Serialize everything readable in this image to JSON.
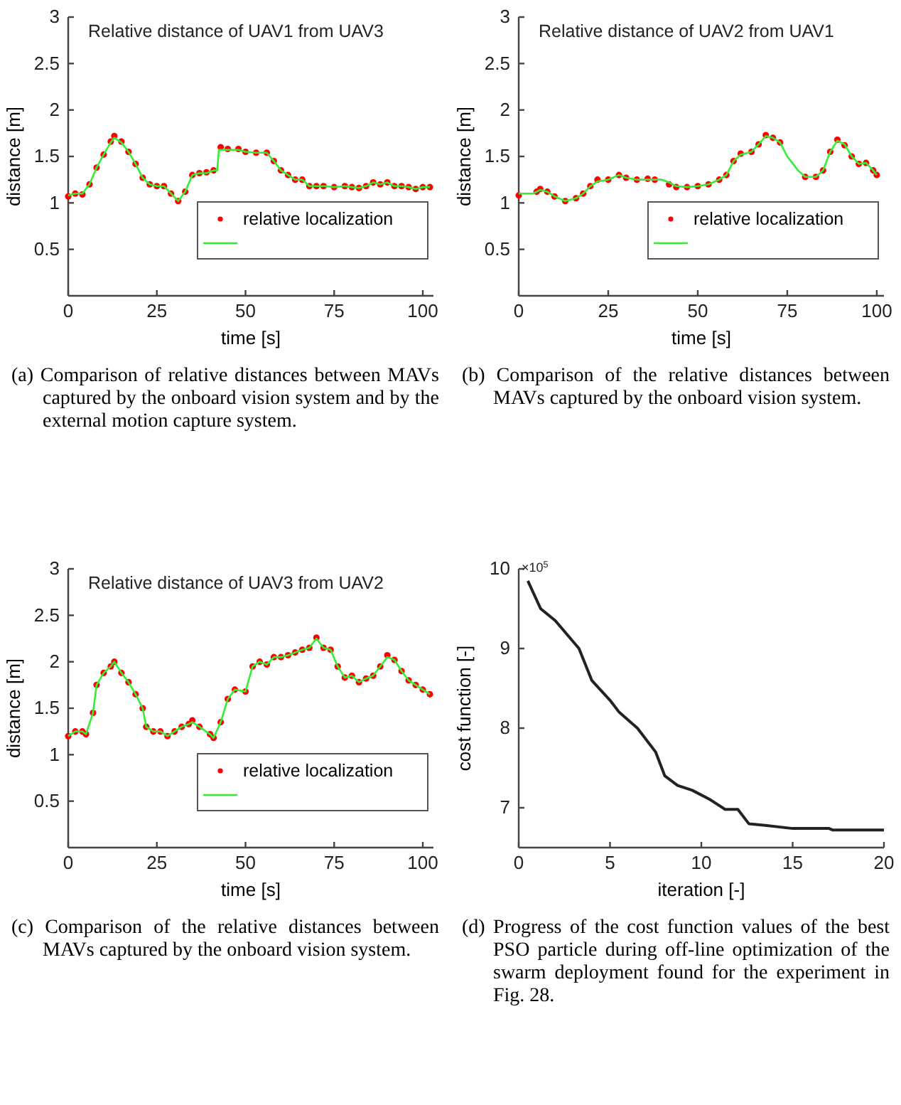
{
  "chart_data": [
    {
      "type": "scatter",
      "title": "Relative distance of UAV1 from UAV3",
      "xlabel": "time [s]",
      "ylabel": "distance [m]",
      "xlim": [
        0,
        103
      ],
      "ylim": [
        0,
        3
      ],
      "xticks": [
        0,
        25,
        50,
        75,
        100
      ],
      "yticks": [
        0.5,
        1,
        1.5,
        2,
        2.5,
        3
      ],
      "legend": "bottom right",
      "grid": false,
      "annotations": [
        "(a) Comparison of relative distances between MAVs captured by the onboard vision system and by the external motion capture system."
      ],
      "series": [
        {
          "name": "relative localization",
          "type": "scatter",
          "marker": "circle",
          "color": "#ff0000",
          "x": [
            0,
            2,
            4,
            6,
            8,
            10,
            12,
            13,
            15,
            17,
            19,
            21,
            23,
            25,
            27,
            29,
            31,
            33,
            35,
            37,
            39,
            41,
            43,
            45,
            48,
            50,
            53,
            56,
            58,
            60,
            62,
            64,
            66,
            68,
            70,
            72,
            75,
            78,
            80,
            82,
            84,
            86,
            88,
            90,
            92,
            94,
            96,
            98,
            100,
            102
          ],
          "values": [
            1.07,
            1.1,
            1.09,
            1.2,
            1.38,
            1.52,
            1.66,
            1.72,
            1.66,
            1.55,
            1.42,
            1.27,
            1.2,
            1.18,
            1.18,
            1.1,
            1.02,
            1.12,
            1.3,
            1.32,
            1.33,
            1.35,
            1.6,
            1.58,
            1.58,
            1.55,
            1.54,
            1.54,
            1.45,
            1.35,
            1.3,
            1.25,
            1.25,
            1.18,
            1.18,
            1.18,
            1.17,
            1.18,
            1.17,
            1.16,
            1.18,
            1.22,
            1.2,
            1.22,
            1.18,
            1.18,
            1.17,
            1.15,
            1.17,
            1.17
          ]
        },
        {
          "type": "line",
          "color": "#33ee33",
          "x": [
            0,
            2,
            4,
            6,
            8,
            10,
            12,
            13,
            15,
            17,
            19,
            21,
            23,
            25,
            27,
            29,
            31,
            33,
            35,
            37,
            39,
            41,
            42,
            42.5,
            45,
            48,
            50,
            53,
            56,
            58,
            60,
            62,
            64,
            66,
            68,
            70,
            72,
            75,
            78,
            80,
            82,
            84,
            86,
            88,
            90,
            92,
            94,
            96,
            98,
            100,
            102
          ],
          "values": [
            1.08,
            1.1,
            1.1,
            1.2,
            1.38,
            1.52,
            1.65,
            1.7,
            1.65,
            1.55,
            1.42,
            1.27,
            1.2,
            1.18,
            1.18,
            1.1,
            1.02,
            1.12,
            1.3,
            1.32,
            1.32,
            1.35,
            1.35,
            1.57,
            1.57,
            1.57,
            1.55,
            1.54,
            1.54,
            1.45,
            1.35,
            1.3,
            1.25,
            1.25,
            1.18,
            1.18,
            1.18,
            1.17,
            1.18,
            1.17,
            1.16,
            1.18,
            1.22,
            1.2,
            1.22,
            1.18,
            1.18,
            1.17,
            1.15,
            1.17,
            1.17
          ]
        }
      ]
    },
    {
      "type": "scatter",
      "title": "Relative distance of UAV2 from UAV1",
      "xlabel": "time [s]",
      "ylabel": "distance [m]",
      "xlim": [
        0,
        102
      ],
      "ylim": [
        0,
        3
      ],
      "xticks": [
        0,
        25,
        50,
        75,
        100
      ],
      "yticks": [
        0.5,
        1,
        1.5,
        2,
        2.5,
        3
      ],
      "legend": "bottom right",
      "grid": false,
      "annotations": [
        "(b) Comparison of the relative distances between MAVs captured by the onboard vision system."
      ],
      "series": [
        {
          "name": "relative localization",
          "type": "scatter",
          "marker": "circle",
          "color": "#ff0000",
          "x": [
            0,
            5,
            6,
            8,
            10,
            13,
            16,
            18,
            20,
            22,
            25,
            28,
            30,
            33,
            36,
            38,
            42,
            44,
            47,
            50,
            53,
            56,
            58,
            60,
            62,
            65,
            67,
            69,
            71,
            73,
            80,
            83,
            85,
            87,
            89,
            91,
            93,
            95,
            97,
            99,
            100
          ],
          "values": [
            1.08,
            1.12,
            1.15,
            1.12,
            1.07,
            1.02,
            1.05,
            1.1,
            1.18,
            1.25,
            1.25,
            1.3,
            1.27,
            1.25,
            1.26,
            1.25,
            1.2,
            1.17,
            1.17,
            1.18,
            1.2,
            1.25,
            1.3,
            1.45,
            1.53,
            1.55,
            1.63,
            1.73,
            1.7,
            1.65,
            1.28,
            1.28,
            1.35,
            1.55,
            1.68,
            1.62,
            1.5,
            1.42,
            1.43,
            1.35,
            1.3
          ]
        },
        {
          "type": "line",
          "color": "#33ee33",
          "x": [
            0,
            4,
            6,
            8,
            10,
            13,
            16,
            18,
            20,
            22,
            25,
            28,
            30,
            33,
            36,
            38,
            40,
            42,
            44,
            47,
            50,
            53,
            56,
            58,
            60,
            62,
            65,
            67,
            69,
            71,
            73,
            75,
            78,
            80,
            83,
            85,
            87,
            89,
            91,
            93,
            95,
            97,
            99,
            100
          ],
          "values": [
            1.1,
            1.1,
            1.14,
            1.12,
            1.07,
            1.02,
            1.05,
            1.1,
            1.18,
            1.23,
            1.25,
            1.3,
            1.27,
            1.25,
            1.25,
            1.25,
            1.25,
            1.22,
            1.18,
            1.17,
            1.18,
            1.2,
            1.25,
            1.3,
            1.45,
            1.52,
            1.55,
            1.63,
            1.72,
            1.7,
            1.65,
            1.5,
            1.35,
            1.28,
            1.28,
            1.35,
            1.55,
            1.67,
            1.63,
            1.5,
            1.42,
            1.43,
            1.35,
            1.3
          ]
        }
      ]
    },
    {
      "type": "scatter",
      "title": "Relative distance of UAV3 from UAV2",
      "xlabel": "time [s]",
      "ylabel": "distance [m]",
      "xlim": [
        0,
        103
      ],
      "ylim": [
        0,
        3
      ],
      "xticks": [
        0,
        25,
        50,
        75,
        100
      ],
      "yticks": [
        0.5,
        1,
        1.5,
        2,
        2.5,
        3
      ],
      "legend": "bottom right",
      "grid": false,
      "annotations": [
        "(c) Comparison of the relative distances between MAVs captured by the onboard vision system."
      ],
      "series": [
        {
          "name": "relative localization",
          "type": "scatter",
          "marker": "circle",
          "color": "#ff0000",
          "x": [
            0,
            2,
            4,
            5,
            7,
            8,
            10,
            12,
            13,
            15,
            17,
            19,
            21,
            22,
            24,
            26,
            28,
            30,
            32,
            34,
            35,
            37,
            40,
            41,
            43,
            45,
            47,
            50,
            52,
            54,
            56,
            58,
            60,
            62,
            64,
            66,
            68,
            70,
            72,
            74,
            76,
            78,
            80,
            82,
            84,
            86,
            88,
            90,
            92,
            94,
            96,
            98,
            100,
            102
          ],
          "values": [
            1.2,
            1.25,
            1.25,
            1.22,
            1.45,
            1.75,
            1.88,
            1.95,
            2.0,
            1.88,
            1.78,
            1.65,
            1.5,
            1.3,
            1.25,
            1.25,
            1.2,
            1.25,
            1.3,
            1.33,
            1.37,
            1.3,
            1.22,
            1.18,
            1.35,
            1.6,
            1.7,
            1.68,
            1.95,
            2.0,
            1.97,
            2.05,
            2.05,
            2.07,
            2.1,
            2.13,
            2.15,
            2.26,
            2.15,
            2.13,
            1.95,
            1.83,
            1.85,
            1.78,
            1.82,
            1.85,
            1.95,
            2.07,
            2.02,
            1.9,
            1.8,
            1.75,
            1.7,
            1.65
          ]
        },
        {
          "type": "line",
          "color": "#33ee33",
          "x": [
            0,
            2,
            4,
            5,
            7,
            8,
            10,
            12,
            13,
            15,
            17,
            19,
            21,
            22,
            24,
            26,
            28,
            30,
            32,
            34,
            35,
            37,
            40,
            41,
            43,
            45,
            47,
            50,
            52,
            54,
            56,
            58,
            60,
            62,
            64,
            66,
            68,
            70,
            72,
            74,
            76,
            78,
            80,
            82,
            84,
            86,
            88,
            90,
            92,
            94,
            96,
            98,
            100,
            102
          ],
          "values": [
            1.2,
            1.25,
            1.25,
            1.22,
            1.45,
            1.75,
            1.88,
            1.95,
            2.0,
            1.88,
            1.78,
            1.65,
            1.5,
            1.3,
            1.25,
            1.25,
            1.2,
            1.25,
            1.3,
            1.33,
            1.35,
            1.3,
            1.22,
            1.18,
            1.35,
            1.6,
            1.7,
            1.68,
            1.95,
            2.0,
            1.97,
            2.05,
            2.05,
            2.07,
            2.1,
            2.13,
            2.15,
            2.25,
            2.15,
            2.13,
            1.95,
            1.83,
            1.85,
            1.78,
            1.82,
            1.85,
            1.95,
            2.05,
            2.02,
            1.9,
            1.8,
            1.75,
            1.7,
            1.65
          ]
        }
      ]
    },
    {
      "type": "line",
      "xlabel": "iteration [-]",
      "ylabel": "cost function [-]",
      "xlim": [
        0,
        20
      ],
      "ylim": [
        6.5,
        10
      ],
      "xticks": [
        0,
        5,
        10,
        15,
        20
      ],
      "yticks": [
        7,
        8,
        9,
        10
      ],
      "grid": false,
      "annotations": [
        "×10$^{5}$",
        "(d) Progress of the cost function values of the best PSO particle during off-line optimization of the swarm deployment found for the experiment in Fig. 28."
      ],
      "series": [
        {
          "color": "#222222",
          "x": [
            0.5,
            1.2,
            2,
            3.3,
            4,
            5,
            5.5,
            6.5,
            7.5,
            8,
            8.7,
            9.5,
            10.5,
            11.3,
            12,
            12.6,
            13.5,
            15,
            17,
            17.2,
            20
          ],
          "values": [
            9.85,
            9.5,
            9.35,
            9.0,
            8.6,
            8.35,
            8.2,
            8.0,
            7.7,
            7.4,
            7.28,
            7.22,
            7.1,
            6.98,
            6.98,
            6.8,
            6.78,
            6.74,
            6.74,
            6.72,
            6.72
          ]
        }
      ]
    }
  ]
}
